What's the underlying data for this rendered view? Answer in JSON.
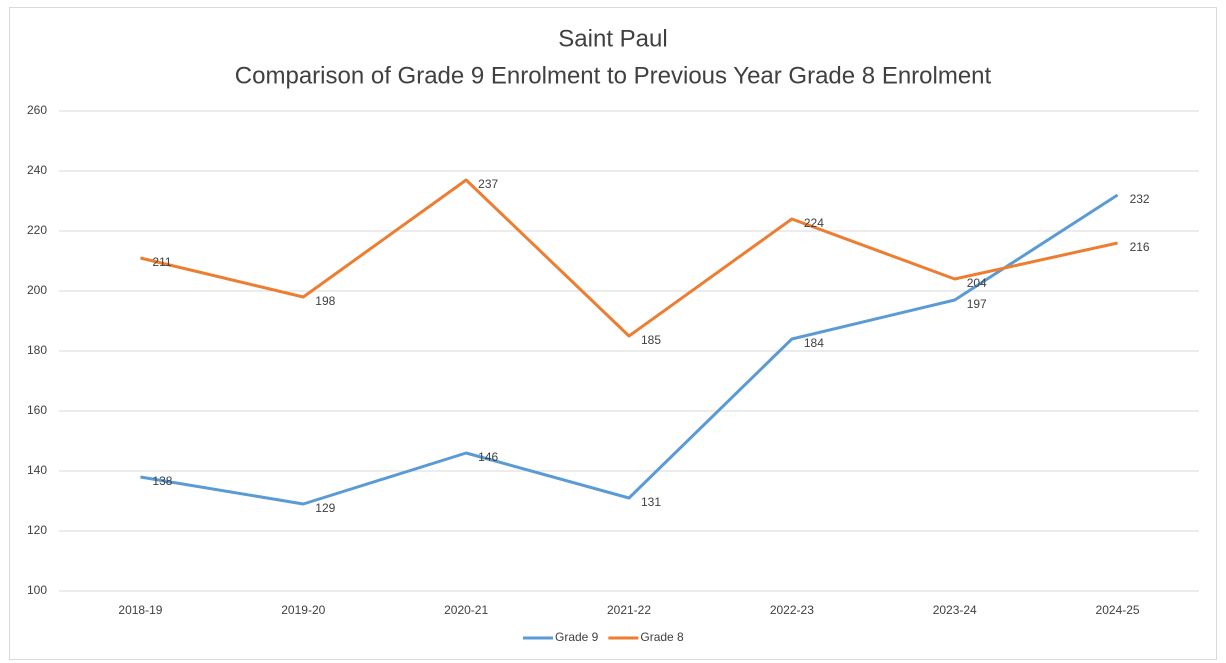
{
  "chart_data": {
    "type": "line",
    "title": "Saint Paul",
    "subtitle": "Comparison of Grade 9 Enrolment to Previous Year Grade 8 Enrolment",
    "categories": [
      "2018-19",
      "2019-20",
      "2020-21",
      "2021-22",
      "2022-23",
      "2023-24",
      "2024-25"
    ],
    "series": [
      {
        "name": "Grade 9",
        "color": "#5b9bd5",
        "values": [
          138,
          129,
          146,
          131,
          184,
          197,
          232
        ]
      },
      {
        "name": "Grade 8",
        "color": "#ed7d31",
        "values": [
          211,
          198,
          237,
          185,
          224,
          204,
          216
        ]
      }
    ],
    "ylim": [
      100,
      260
    ],
    "yticks": [
      100,
      120,
      140,
      160,
      180,
      200,
      220,
      240,
      260
    ],
    "grid": true,
    "legend": "bottom"
  }
}
